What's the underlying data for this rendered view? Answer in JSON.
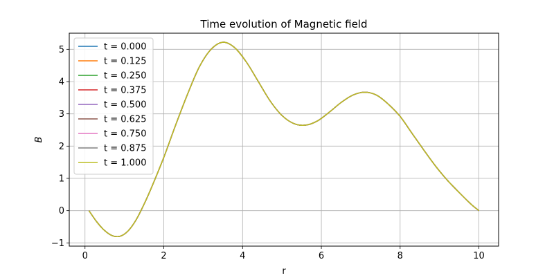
{
  "chart_data": {
    "type": "line",
    "title": "Time evolution of Magnetic field",
    "xlabel": "r",
    "ylabel": "B",
    "xlim": [
      -0.4,
      10.5
    ],
    "ylim": [
      -1.1,
      5.5
    ],
    "xticks": [
      0,
      2,
      4,
      6,
      8,
      10
    ],
    "xtick_labels": [
      "0",
      "2",
      "4",
      "6",
      "8",
      "10"
    ],
    "yticks": [
      -1,
      0,
      1,
      2,
      3,
      4,
      5
    ],
    "ytick_labels": [
      "−1",
      "0",
      "1",
      "2",
      "3",
      "4",
      "5"
    ],
    "grid": true,
    "legend_position": "upper-left",
    "x": [
      0.1,
      0.3,
      0.5,
      0.7,
      0.9,
      1.1,
      1.3,
      1.5,
      1.7,
      2.0,
      2.3,
      2.6,
      2.9,
      3.2,
      3.5,
      3.8,
      4.1,
      4.4,
      4.7,
      5.0,
      5.3,
      5.6,
      5.9,
      6.2,
      6.5,
      6.8,
      7.1,
      7.4,
      7.7,
      8.0,
      8.3,
      8.6,
      8.9,
      9.2,
      9.5,
      9.8,
      10.0
    ],
    "series": [
      {
        "name": "t = 0.000",
        "color": "#1f77b4"
      },
      {
        "name": "t = 0.125",
        "color": "#ff7f0e"
      },
      {
        "name": "t = 0.250",
        "color": "#2ca02c"
      },
      {
        "name": "t = 0.375",
        "color": "#d62728"
      },
      {
        "name": "t = 0.500",
        "color": "#9467bd"
      },
      {
        "name": "t = 0.625",
        "color": "#8c564b"
      },
      {
        "name": "t = 0.750",
        "color": "#e377c2"
      },
      {
        "name": "t = 0.875",
        "color": "#7f7f7f"
      },
      {
        "name": "t = 1.000",
        "color": "#bcbd22"
      }
    ],
    "shared_values": [
      0.0,
      -0.35,
      -0.62,
      -0.78,
      -0.79,
      -0.62,
      -0.28,
      0.2,
      0.75,
      1.65,
      2.65,
      3.6,
      4.45,
      5.0,
      5.22,
      5.05,
      4.6,
      4.0,
      3.4,
      2.95,
      2.7,
      2.65,
      2.78,
      3.05,
      3.35,
      3.58,
      3.67,
      3.58,
      3.3,
      2.92,
      2.4,
      1.88,
      1.38,
      0.94,
      0.56,
      0.2,
      0.0
    ]
  }
}
